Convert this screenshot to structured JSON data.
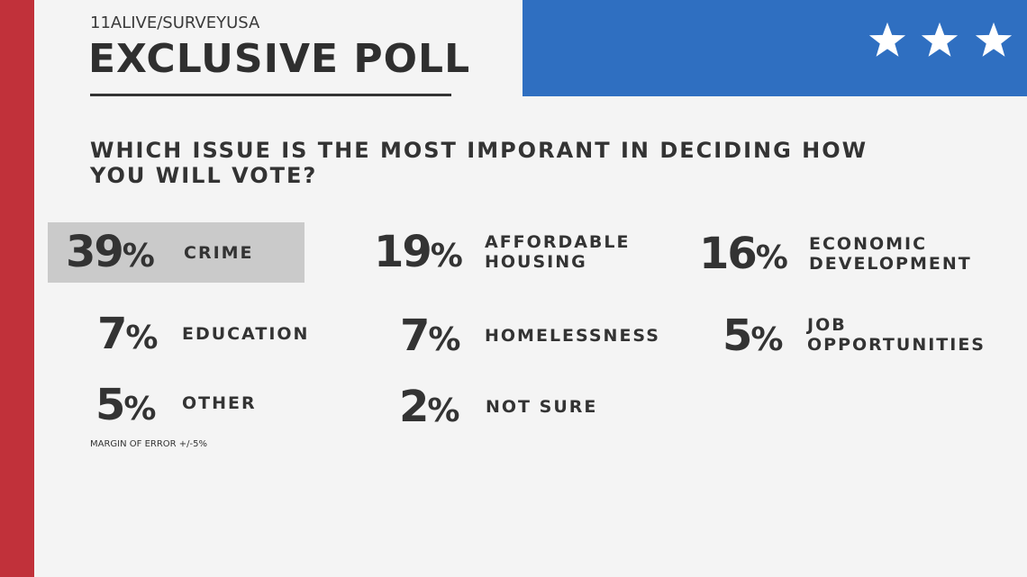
{
  "header": {
    "kicker": "11ALIVE/SURVEYUSA",
    "title": "EXCLUSIVE POLL"
  },
  "decor": {
    "accent_red": "#c1313a",
    "accent_blue": "#2f6fc1",
    "highlight_gray": "#cacaca",
    "stars": [
      "star-icon",
      "star-icon",
      "star-icon"
    ]
  },
  "question": "WHICH ISSUE IS THE MOST IMPORANT IN DECIDING HOW YOU WILL VOTE?",
  "results": [
    {
      "value": "39",
      "unit": "%",
      "label_lines": [
        "CRIME"
      ],
      "highlighted": true
    },
    {
      "value": "19",
      "unit": "%",
      "label_lines": [
        "AFFORDABLE",
        "HOUSING"
      ]
    },
    {
      "value": "16",
      "unit": "%",
      "label_lines": [
        "ECONOMIC",
        "DEVELOPMENT"
      ]
    },
    {
      "value": "7",
      "unit": "%",
      "label_lines": [
        "EDUCATION"
      ]
    },
    {
      "value": "7",
      "unit": "%",
      "label_lines": [
        "HOMELESSNESS"
      ]
    },
    {
      "value": "5",
      "unit": "%",
      "label_lines": [
        "JOB",
        "OPPORTUNITIES"
      ]
    },
    {
      "value": "5",
      "unit": "%",
      "label_lines": [
        "OTHER"
      ]
    },
    {
      "value": "2",
      "unit": "%",
      "label_lines": [
        "NOT SURE"
      ]
    }
  ],
  "footnote": "MARGIN OF ERROR +/-5%"
}
